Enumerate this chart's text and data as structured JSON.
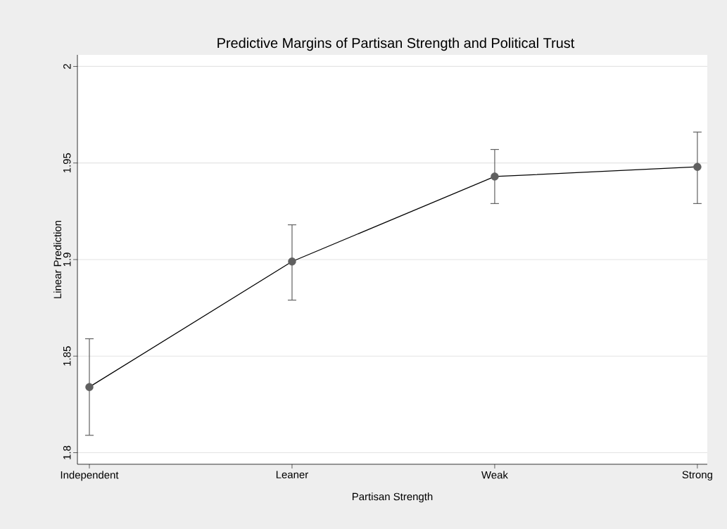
{
  "chart_data": {
    "type": "line",
    "title": "Predictive Margins of Partisan Strength and Political Trust",
    "xlabel": "Partisan Strength",
    "ylabel": "Linear Prediction",
    "categories": [
      "Independent",
      "Leaner",
      "Weak",
      "Strong"
    ],
    "series": [
      {
        "color": "#000000",
        "values": [
          1.834,
          1.899,
          1.943,
          1.948
        ],
        "errors": [
          [
            1.809,
            1.859
          ],
          [
            1.879,
            1.918
          ],
          [
            1.929,
            1.957
          ],
          [
            1.929,
            1.966
          ]
        ]
      }
    ],
    "ylim": [
      1.794,
      2.006
    ],
    "yticks": [
      1.8,
      1.85,
      1.9,
      1.95,
      2
    ],
    "grid": "y",
    "marker": "circle",
    "line_style": "solid"
  }
}
